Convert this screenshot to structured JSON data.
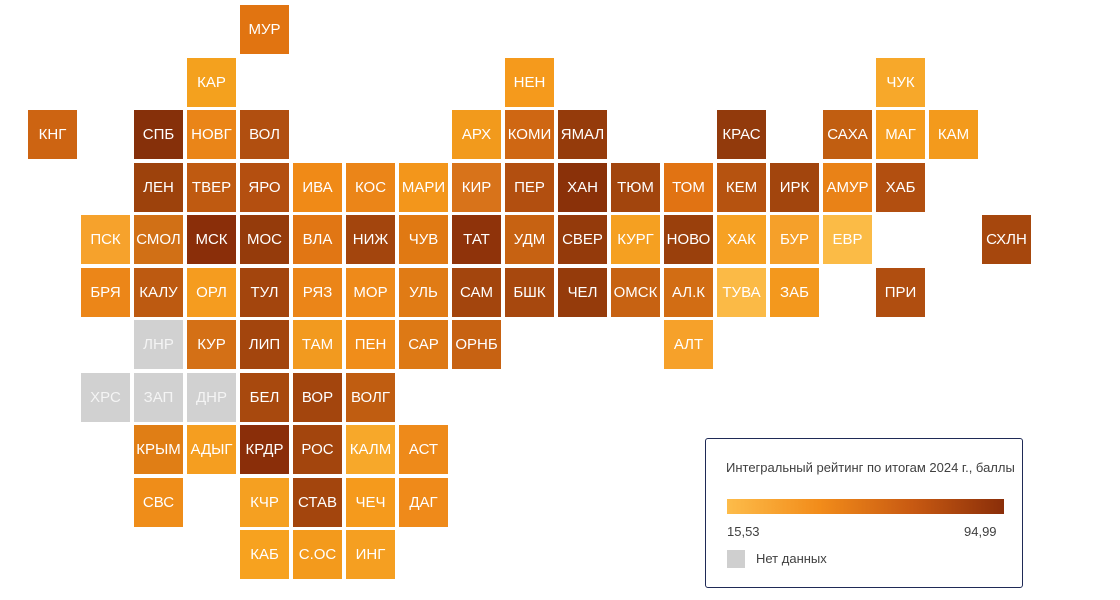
{
  "legend": {
    "title": "Интегральный рейтинг по итогам 2024 г., баллы",
    "min_label": "15,53",
    "max_label": "94,99",
    "min_value": 15.53,
    "max_value": 94.99,
    "nodata_label": "Нет данных",
    "gradient_colors": [
      "#fdbc4a",
      "#f28c1a",
      "#c85a12",
      "#8a2e09"
    ],
    "nodata_color": "#cfcfcf"
  },
  "regions": [
    {
      "label": "МУР",
      "row": 0,
      "col": 4,
      "color": "#e17411"
    },
    {
      "label": "КАР",
      "row": 1,
      "col": 3,
      "color": "#f4a11e"
    },
    {
      "label": "НЕН",
      "row": 1,
      "col": 9,
      "color": "#f59a1c"
    },
    {
      "label": "ЧУК",
      "row": 1,
      "col": 16,
      "color": "#f7a82a"
    },
    {
      "label": "КНГ",
      "row": 2,
      "col": 0,
      "color": "#cd6412"
    },
    {
      "label": "СПБ",
      "row": 2,
      "col": 2,
      "color": "#86300a"
    },
    {
      "label": "НОВГ",
      "row": 2,
      "col": 3,
      "color": "#ea8518"
    },
    {
      "label": "ВОЛ",
      "row": 2,
      "col": 4,
      "color": "#b14f10"
    },
    {
      "label": "АРХ",
      "row": 2,
      "col": 8,
      "color": "#f29a1c"
    },
    {
      "label": "КОМИ",
      "row": 2,
      "col": 9,
      "color": "#cf6713"
    },
    {
      "label": "ЯМАЛ",
      "row": 2,
      "col": 10,
      "color": "#953b0b"
    },
    {
      "label": "КРАС",
      "row": 2,
      "col": 13,
      "color": "#923a0c"
    },
    {
      "label": "САХА",
      "row": 2,
      "col": 15,
      "color": "#c15e11"
    },
    {
      "label": "МАГ",
      "row": 2,
      "col": 16,
      "color": "#f59d1e"
    },
    {
      "label": "КАМ",
      "row": 2,
      "col": 17,
      "color": "#f39a1c"
    },
    {
      "label": "ЛЕН",
      "row": 3,
      "col": 2,
      "color": "#9d420c"
    },
    {
      "label": "ТВЕР",
      "row": 3,
      "col": 3,
      "color": "#bf5a11"
    },
    {
      "label": "ЯРО",
      "row": 3,
      "col": 4,
      "color": "#b44f10"
    },
    {
      "label": "ИВА",
      "row": 3,
      "col": 5,
      "color": "#f08a17"
    },
    {
      "label": "КОС",
      "row": 3,
      "col": 6,
      "color": "#eb8518"
    },
    {
      "label": "МАРИ",
      "row": 3,
      "col": 7,
      "color": "#f3961b"
    },
    {
      "label": "КИР",
      "row": 3,
      "col": 8,
      "color": "#d8731a"
    },
    {
      "label": "ПЕР",
      "row": 3,
      "col": 9,
      "color": "#b24f10"
    },
    {
      "label": "ХАН",
      "row": 3,
      "col": 10,
      "color": "#8a3109"
    },
    {
      "label": "ТЮМ",
      "row": 3,
      "col": 11,
      "color": "#a2450d"
    },
    {
      "label": "ТОМ",
      "row": 3,
      "col": 12,
      "color": "#e17313"
    },
    {
      "label": "КЕМ",
      "row": 3,
      "col": 13,
      "color": "#b65310"
    },
    {
      "label": "ИРК",
      "row": 3,
      "col": 14,
      "color": "#a2450d"
    },
    {
      "label": "АМУР",
      "row": 3,
      "col": 15,
      "color": "#e98217"
    },
    {
      "label": "ХАБ",
      "row": 3,
      "col": 16,
      "color": "#b24f10"
    },
    {
      "label": "ПСК",
      "row": 4,
      "col": 1,
      "color": "#f6a22c"
    },
    {
      "label": "СМОЛ",
      "row": 4,
      "col": 2,
      "color": "#d17016"
    },
    {
      "label": "МСК",
      "row": 4,
      "col": 3,
      "color": "#8a2e09"
    },
    {
      "label": "МОС",
      "row": 4,
      "col": 4,
      "color": "#953b0b"
    },
    {
      "label": "ВЛА",
      "row": 4,
      "col": 5,
      "color": "#e17614"
    },
    {
      "label": "НИЖ",
      "row": 4,
      "col": 6,
      "color": "#a3450d"
    },
    {
      "label": "ЧУВ",
      "row": 4,
      "col": 7,
      "color": "#e07913"
    },
    {
      "label": "ТАТ",
      "row": 4,
      "col": 8,
      "color": "#8f330a"
    },
    {
      "label": "УДМ",
      "row": 4,
      "col": 9,
      "color": "#c76212"
    },
    {
      "label": "СВЕР",
      "row": 4,
      "col": 10,
      "color": "#943a0b"
    },
    {
      "label": "КУРГ",
      "row": 4,
      "col": 11,
      "color": "#f5a021"
    },
    {
      "label": "НОВО",
      "row": 4,
      "col": 12,
      "color": "#9a400c"
    },
    {
      "label": "ХАК",
      "row": 4,
      "col": 13,
      "color": "#f6a123"
    },
    {
      "label": "БУР",
      "row": 4,
      "col": 14,
      "color": "#f5a02a"
    },
    {
      "label": "ЕВР",
      "row": 4,
      "col": 15,
      "color": "#fbbb46"
    },
    {
      "label": "СХЛН",
      "row": 4,
      "col": 18,
      "color": "#a6470d"
    },
    {
      "label": "БРЯ",
      "row": 5,
      "col": 1,
      "color": "#ec8618"
    },
    {
      "label": "КАЛУ",
      "row": 5,
      "col": 2,
      "color": "#bd5a11"
    },
    {
      "label": "ОРЛ",
      "row": 5,
      "col": 3,
      "color": "#f59c1f"
    },
    {
      "label": "ТУЛ",
      "row": 5,
      "col": 4,
      "color": "#a3450d"
    },
    {
      "label": "РЯЗ",
      "row": 5,
      "col": 5,
      "color": "#eb8518"
    },
    {
      "label": "МОР",
      "row": 5,
      "col": 6,
      "color": "#ee8a1a"
    },
    {
      "label": "УЛЬ",
      "row": 5,
      "col": 7,
      "color": "#e07b15"
    },
    {
      "label": "САМ",
      "row": 5,
      "col": 8,
      "color": "#a3450d"
    },
    {
      "label": "БШК",
      "row": 5,
      "col": 9,
      "color": "#a7480e"
    },
    {
      "label": "ЧЕЛ",
      "row": 5,
      "col": 10,
      "color": "#953b0b"
    },
    {
      "label": "ОМСК",
      "row": 5,
      "col": 11,
      "color": "#c76212"
    },
    {
      "label": "АЛ.К",
      "row": 5,
      "col": 12,
      "color": "#d26d14"
    },
    {
      "label": "ТУВА",
      "row": 5,
      "col": 13,
      "color": "#fbba46"
    },
    {
      "label": "ЗАБ",
      "row": 5,
      "col": 14,
      "color": "#f3981d"
    },
    {
      "label": "ПРИ",
      "row": 5,
      "col": 16,
      "color": "#b04e10"
    },
    {
      "label": "ЛНР",
      "row": 6,
      "col": 2,
      "color": "#d1d1d1",
      "nodata": true
    },
    {
      "label": "КУР",
      "row": 6,
      "col": 3,
      "color": "#d47016"
    },
    {
      "label": "ЛИП",
      "row": 6,
      "col": 4,
      "color": "#a3450d"
    },
    {
      "label": "ТАМ",
      "row": 6,
      "col": 5,
      "color": "#f29a1f"
    },
    {
      "label": "ПЕН",
      "row": 6,
      "col": 6,
      "color": "#f08d1a"
    },
    {
      "label": "САР",
      "row": 6,
      "col": 7,
      "color": "#dd7915"
    },
    {
      "label": "ОРНБ",
      "row": 6,
      "col": 8,
      "color": "#c76212"
    },
    {
      "label": "АЛТ",
      "row": 6,
      "col": 12,
      "color": "#f6a12a"
    },
    {
      "label": "ХРС",
      "row": 7,
      "col": 1,
      "color": "#d1d1d1",
      "nodata": true
    },
    {
      "label": "ЗАП",
      "row": 7,
      "col": 2,
      "color": "#d1d1d1",
      "nodata": true
    },
    {
      "label": "ДНР",
      "row": 7,
      "col": 3,
      "color": "#d1d1d1",
      "nodata": true
    },
    {
      "label": "БЕЛ",
      "row": 7,
      "col": 4,
      "color": "#a8490e"
    },
    {
      "label": "ВОР",
      "row": 7,
      "col": 5,
      "color": "#a3450d"
    },
    {
      "label": "ВОЛГ",
      "row": 7,
      "col": 6,
      "color": "#c05d11"
    },
    {
      "label": "КРЫМ",
      "row": 8,
      "col": 2,
      "color": "#e07e15"
    },
    {
      "label": "АДЫГ",
      "row": 8,
      "col": 3,
      "color": "#f59e20"
    },
    {
      "label": "КРДР",
      "row": 8,
      "col": 4,
      "color": "#8a2e09"
    },
    {
      "label": "РОС",
      "row": 8,
      "col": 5,
      "color": "#a3450d"
    },
    {
      "label": "КАЛМ",
      "row": 8,
      "col": 6,
      "color": "#f7a82a"
    },
    {
      "label": "АСТ",
      "row": 8,
      "col": 7,
      "color": "#ee8a1a"
    },
    {
      "label": "СВС",
      "row": 9,
      "col": 2,
      "color": "#ef8d19"
    },
    {
      "label": "КЧР",
      "row": 9,
      "col": 4,
      "color": "#f5a021"
    },
    {
      "label": "СТАВ",
      "row": 9,
      "col": 5,
      "color": "#a3450d"
    },
    {
      "label": "ЧЕЧ",
      "row": 9,
      "col": 6,
      "color": "#f59a1c"
    },
    {
      "label": "ДАГ",
      "row": 9,
      "col": 7,
      "color": "#ef8a1a"
    },
    {
      "label": "КАБ",
      "row": 10,
      "col": 4,
      "color": "#f7a21f"
    },
    {
      "label": "С.ОС",
      "row": 10,
      "col": 5,
      "color": "#f39a1c"
    },
    {
      "label": "ИНГ",
      "row": 10,
      "col": 6,
      "color": "#f59f21"
    }
  ]
}
